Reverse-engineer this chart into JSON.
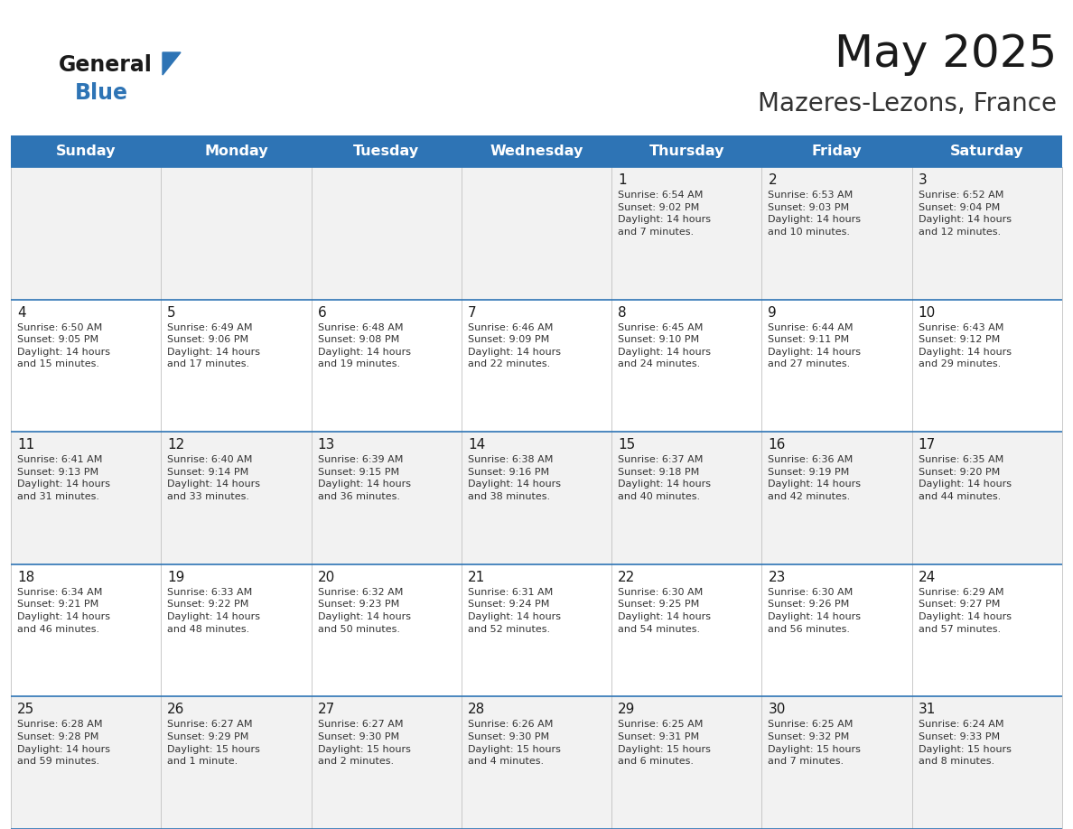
{
  "title": "May 2025",
  "subtitle": "Mazeres-Lezons, France",
  "header_bg": "#2E74B5",
  "header_text_color": "#FFFFFF",
  "cell_bg_week1": "#F2F2F2",
  "cell_bg_week2": "#FFFFFF",
  "cell_bg_week3": "#F2F2F2",
  "cell_bg_week4": "#FFFFFF",
  "cell_bg_week5": "#F2F2F2",
  "row_border_color": "#2E74B5",
  "col_border_color": "#C0C0C0",
  "day_headers": [
    "Sunday",
    "Monday",
    "Tuesday",
    "Wednesday",
    "Thursday",
    "Friday",
    "Saturday"
  ],
  "weeks": [
    [
      {
        "day": "",
        "info": ""
      },
      {
        "day": "",
        "info": ""
      },
      {
        "day": "",
        "info": ""
      },
      {
        "day": "",
        "info": ""
      },
      {
        "day": "1",
        "info": "Sunrise: 6:54 AM\nSunset: 9:02 PM\nDaylight: 14 hours\nand 7 minutes."
      },
      {
        "day": "2",
        "info": "Sunrise: 6:53 AM\nSunset: 9:03 PM\nDaylight: 14 hours\nand 10 minutes."
      },
      {
        "day": "3",
        "info": "Sunrise: 6:52 AM\nSunset: 9:04 PM\nDaylight: 14 hours\nand 12 minutes."
      }
    ],
    [
      {
        "day": "4",
        "info": "Sunrise: 6:50 AM\nSunset: 9:05 PM\nDaylight: 14 hours\nand 15 minutes."
      },
      {
        "day": "5",
        "info": "Sunrise: 6:49 AM\nSunset: 9:06 PM\nDaylight: 14 hours\nand 17 minutes."
      },
      {
        "day": "6",
        "info": "Sunrise: 6:48 AM\nSunset: 9:08 PM\nDaylight: 14 hours\nand 19 minutes."
      },
      {
        "day": "7",
        "info": "Sunrise: 6:46 AM\nSunset: 9:09 PM\nDaylight: 14 hours\nand 22 minutes."
      },
      {
        "day": "8",
        "info": "Sunrise: 6:45 AM\nSunset: 9:10 PM\nDaylight: 14 hours\nand 24 minutes."
      },
      {
        "day": "9",
        "info": "Sunrise: 6:44 AM\nSunset: 9:11 PM\nDaylight: 14 hours\nand 27 minutes."
      },
      {
        "day": "10",
        "info": "Sunrise: 6:43 AM\nSunset: 9:12 PM\nDaylight: 14 hours\nand 29 minutes."
      }
    ],
    [
      {
        "day": "11",
        "info": "Sunrise: 6:41 AM\nSunset: 9:13 PM\nDaylight: 14 hours\nand 31 minutes."
      },
      {
        "day": "12",
        "info": "Sunrise: 6:40 AM\nSunset: 9:14 PM\nDaylight: 14 hours\nand 33 minutes."
      },
      {
        "day": "13",
        "info": "Sunrise: 6:39 AM\nSunset: 9:15 PM\nDaylight: 14 hours\nand 36 minutes."
      },
      {
        "day": "14",
        "info": "Sunrise: 6:38 AM\nSunset: 9:16 PM\nDaylight: 14 hours\nand 38 minutes."
      },
      {
        "day": "15",
        "info": "Sunrise: 6:37 AM\nSunset: 9:18 PM\nDaylight: 14 hours\nand 40 minutes."
      },
      {
        "day": "16",
        "info": "Sunrise: 6:36 AM\nSunset: 9:19 PM\nDaylight: 14 hours\nand 42 minutes."
      },
      {
        "day": "17",
        "info": "Sunrise: 6:35 AM\nSunset: 9:20 PM\nDaylight: 14 hours\nand 44 minutes."
      }
    ],
    [
      {
        "day": "18",
        "info": "Sunrise: 6:34 AM\nSunset: 9:21 PM\nDaylight: 14 hours\nand 46 minutes."
      },
      {
        "day": "19",
        "info": "Sunrise: 6:33 AM\nSunset: 9:22 PM\nDaylight: 14 hours\nand 48 minutes."
      },
      {
        "day": "20",
        "info": "Sunrise: 6:32 AM\nSunset: 9:23 PM\nDaylight: 14 hours\nand 50 minutes."
      },
      {
        "day": "21",
        "info": "Sunrise: 6:31 AM\nSunset: 9:24 PM\nDaylight: 14 hours\nand 52 minutes."
      },
      {
        "day": "22",
        "info": "Sunrise: 6:30 AM\nSunset: 9:25 PM\nDaylight: 14 hours\nand 54 minutes."
      },
      {
        "day": "23",
        "info": "Sunrise: 6:30 AM\nSunset: 9:26 PM\nDaylight: 14 hours\nand 56 minutes."
      },
      {
        "day": "24",
        "info": "Sunrise: 6:29 AM\nSunset: 9:27 PM\nDaylight: 14 hours\nand 57 minutes."
      }
    ],
    [
      {
        "day": "25",
        "info": "Sunrise: 6:28 AM\nSunset: 9:28 PM\nDaylight: 14 hours\nand 59 minutes."
      },
      {
        "day": "26",
        "info": "Sunrise: 6:27 AM\nSunset: 9:29 PM\nDaylight: 15 hours\nand 1 minute."
      },
      {
        "day": "27",
        "info": "Sunrise: 6:27 AM\nSunset: 9:30 PM\nDaylight: 15 hours\nand 2 minutes."
      },
      {
        "day": "28",
        "info": "Sunrise: 6:26 AM\nSunset: 9:30 PM\nDaylight: 15 hours\nand 4 minutes."
      },
      {
        "day": "29",
        "info": "Sunrise: 6:25 AM\nSunset: 9:31 PM\nDaylight: 15 hours\nand 6 minutes."
      },
      {
        "day": "30",
        "info": "Sunrise: 6:25 AM\nSunset: 9:32 PM\nDaylight: 15 hours\nand 7 minutes."
      },
      {
        "day": "31",
        "info": "Sunrise: 6:24 AM\nSunset: 9:33 PM\nDaylight: 15 hours\nand 8 minutes."
      }
    ]
  ],
  "logo_text_general": "General",
  "logo_text_blue": "Blue",
  "logo_color_general": "#1A1A1A",
  "logo_color_blue": "#2E74B5",
  "logo_triangle_color": "#2E74B5",
  "fig_width": 11.88,
  "fig_height": 9.18,
  "dpi": 100
}
